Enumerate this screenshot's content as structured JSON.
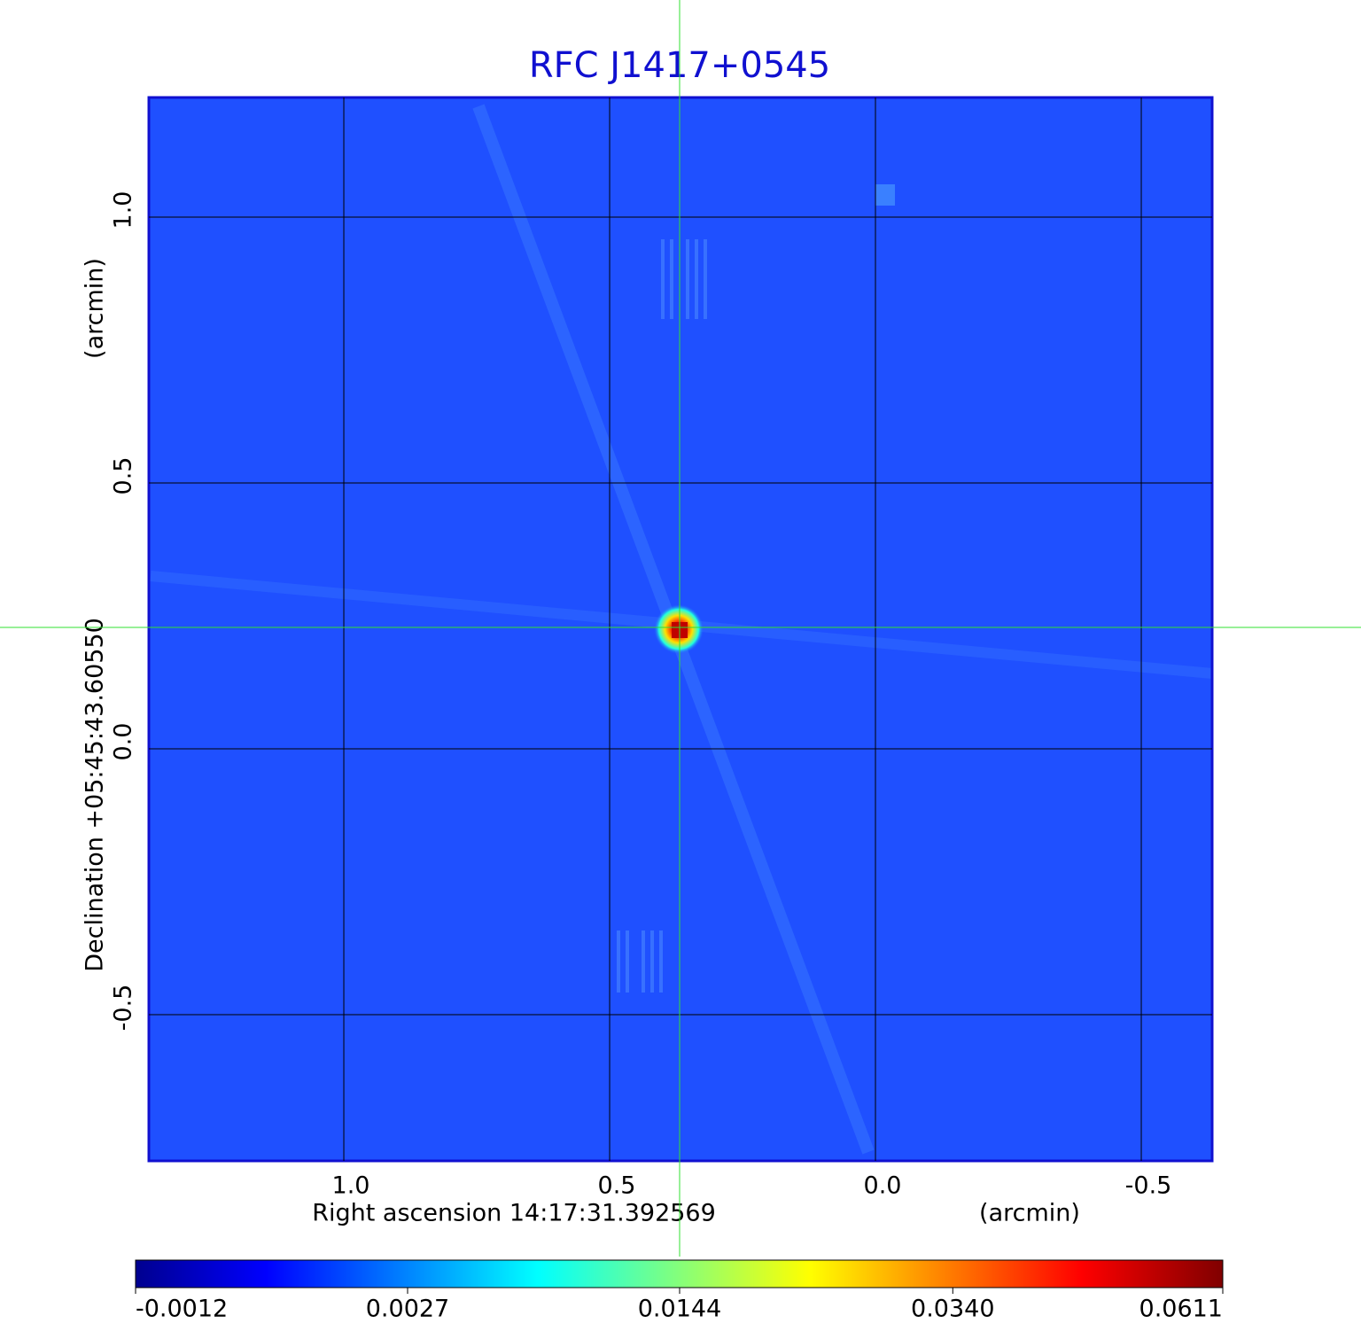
{
  "chart_data": {
    "type": "image",
    "title": "RFC J1417+0545",
    "xlabel": "Right ascension  14:17:31.392569",
    "xunit": "(arcmin)",
    "ylabel": "Declination  +05:45:43.60550",
    "yunit": "(arcmin)",
    "xlim": [
      1.3667,
      -0.6333
    ],
    "ylim": [
      -0.775,
      1.225
    ],
    "xticks": [
      {
        "value": 1,
        "label": "1.0"
      },
      0.5,
      {
        "value": 0,
        "label": "0.0"
      },
      -0.5
    ],
    "yticks": [
      {
        "value": 1,
        "label": "1.0"
      },
      0.5,
      {
        "value": 0,
        "label": "0.0"
      },
      -0.5
    ],
    "grid": true,
    "background": "#1f50ff",
    "colorbar_scale": "sqrt",
    "colorbar_lim": [
      -0.0012,
      0.0611
    ],
    "colorbar_ticks": [
      -0.0012,
      0.0027,
      0.0144,
      {
        "value": 0.034,
        "label": "0.0340"
      },
      0.0611
    ]
  }
}
